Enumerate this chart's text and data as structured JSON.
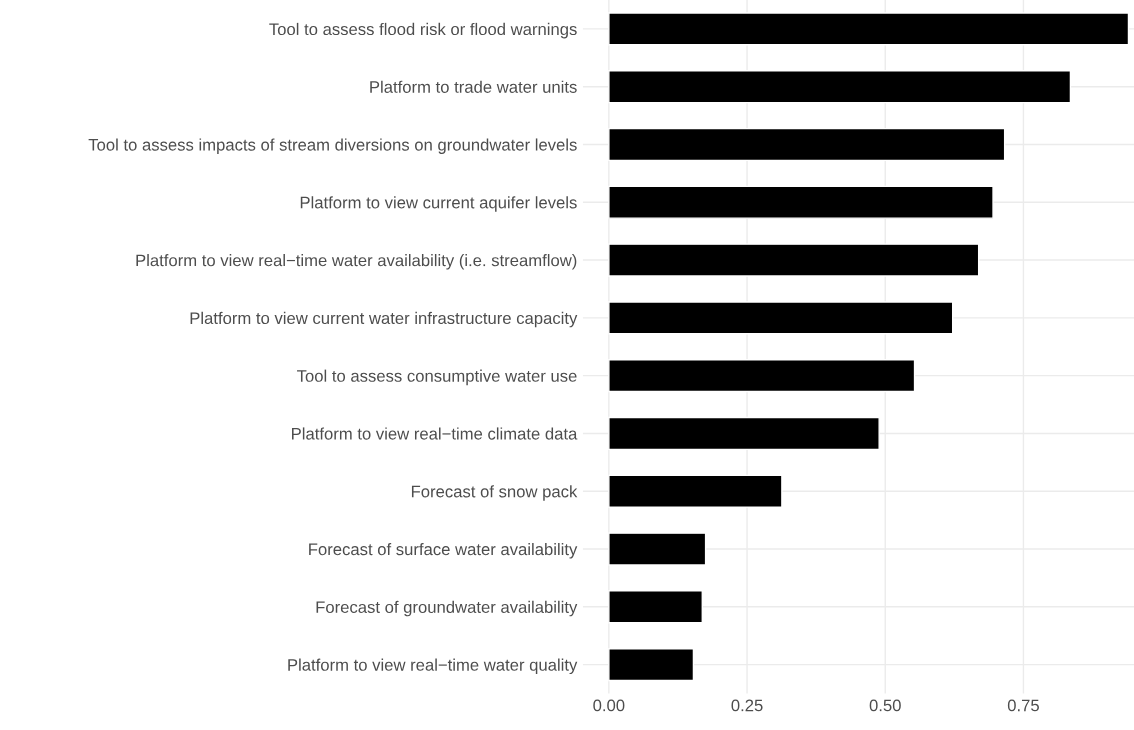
{
  "chart_data": {
    "type": "bar",
    "orientation": "horizontal",
    "categories": [
      "Tool to assess flood risk or flood warnings",
      "Platform to trade water units",
      "Tool to assess impacts of stream diversions on groundwater levels",
      "Platform to view current aquifer levels",
      "Platform to view real−time water availability (i.e. streamflow)",
      "Platform to view current water infrastructure capacity",
      "Tool to assess consumptive water use",
      "Platform to view real−time climate data",
      "Forecast of snow pack",
      "Forecast of surface water availability",
      "Forecast of groundwater availability",
      "Platform to view real−time water quality"
    ],
    "values": [
      0.94,
      0.835,
      0.716,
      0.695,
      0.669,
      0.622,
      0.553,
      0.489,
      0.313,
      0.175,
      0.169,
      0.153
    ],
    "color": "#000000",
    "xlim": [
      -0.047,
      0.95
    ],
    "xticks": [
      {
        "value": 0,
        "label": "0.00"
      },
      {
        "value": 0.25,
        "label": "0.25"
      },
      {
        "value": 0.5,
        "label": "0.50"
      },
      {
        "value": 0.75,
        "label": "0.75"
      }
    ],
    "grid": true
  }
}
